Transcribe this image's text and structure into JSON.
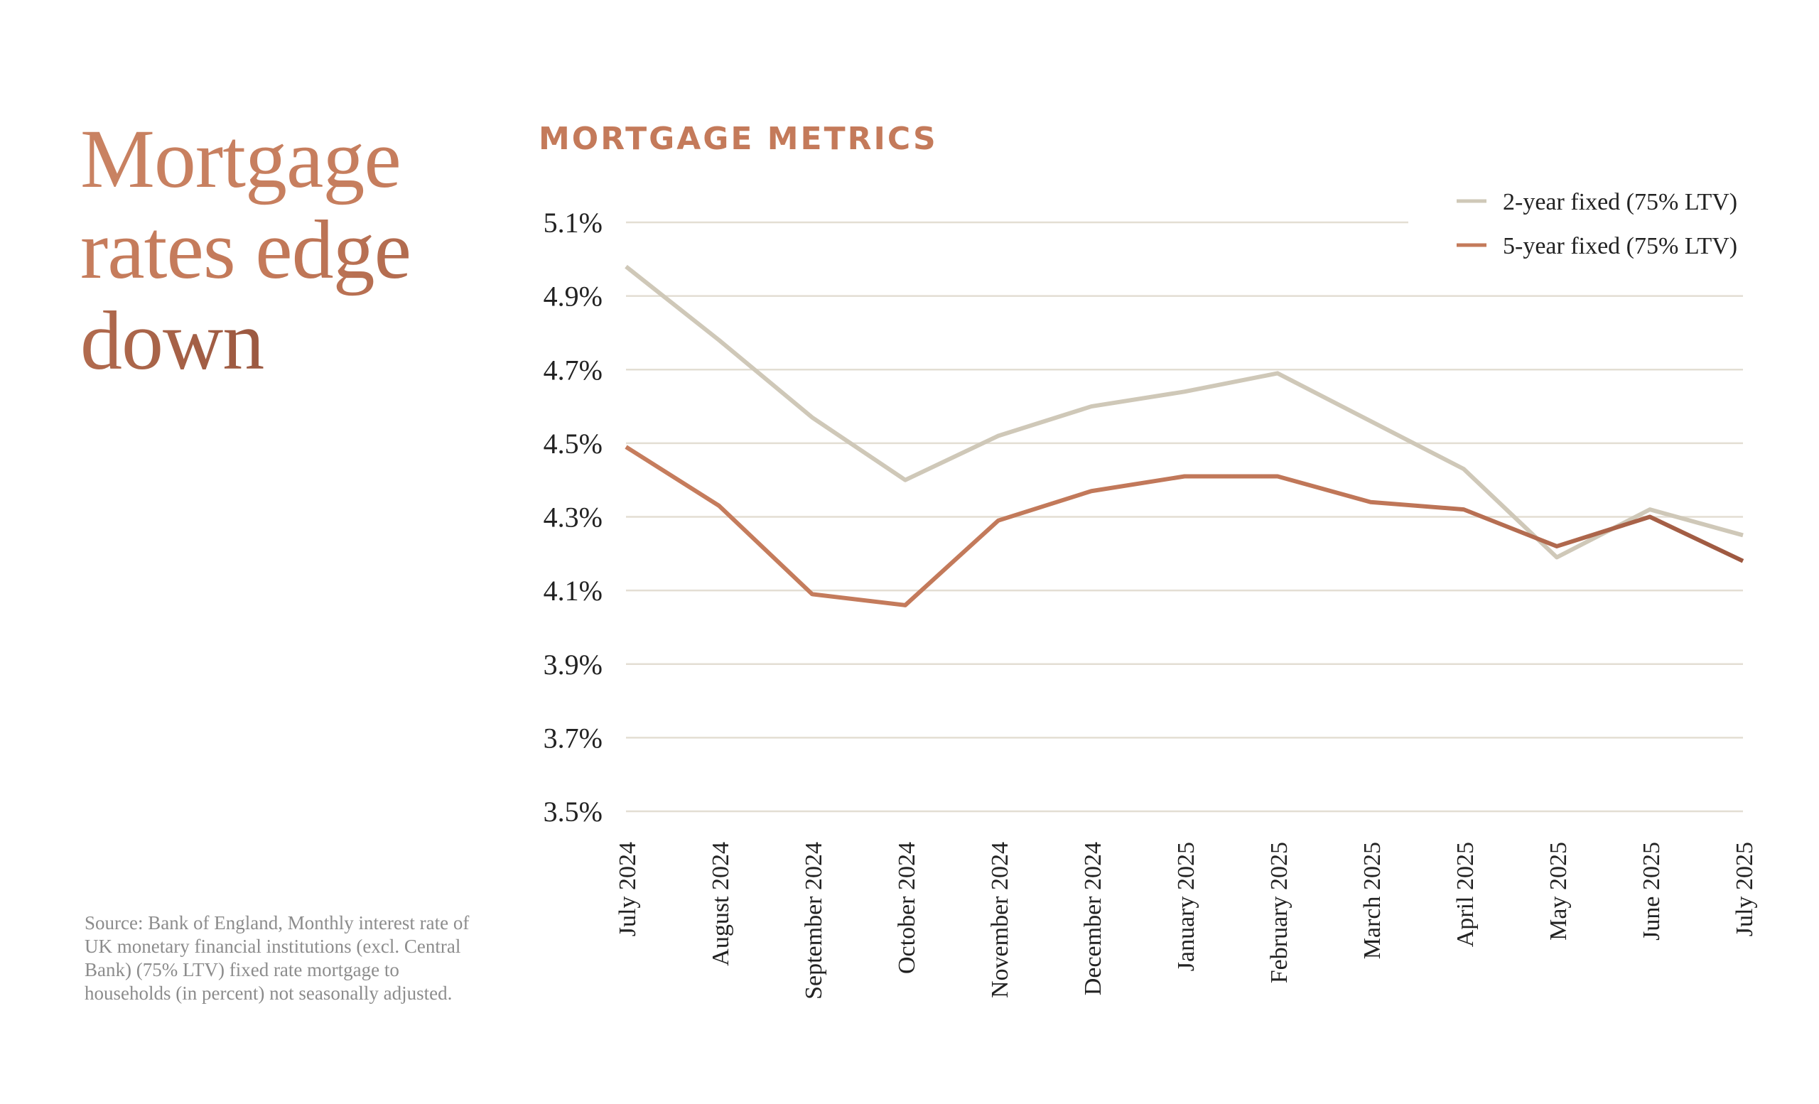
{
  "title": "Mortgage rates edge down",
  "source": "Source: Bank of England, Monthly interest rate of UK monetary financial institutions (excl. Central Bank) (75% LTV) fixed rate mortgage to households (in percent) not seasonally adjusted.",
  "chart_data": {
    "type": "line",
    "title": "MORTGAGE METRICS",
    "xlabel": "",
    "ylabel": "",
    "categories": [
      "July 2024",
      "August 2024",
      "September 2024",
      "October 2024",
      "November 2024",
      "December 2024",
      "January 2025",
      "February 2025",
      "March 2025",
      "April 2025",
      "May 2025",
      "June 2025",
      "July 2025"
    ],
    "y_ticks": [
      "3.5%",
      "3.7%",
      "3.9%",
      "4.1%",
      "4.3%",
      "4.5%",
      "4.7%",
      "4.9%",
      "5.1%"
    ],
    "ylim": [
      3.5,
      5.1
    ],
    "grid": true,
    "legend_position": "top-right",
    "series": [
      {
        "name": "2-year fixed (75% LTV)",
        "color": "#cfc8b8",
        "values": [
          4.98,
          4.78,
          4.57,
          4.4,
          4.52,
          4.6,
          4.64,
          4.69,
          4.56,
          4.43,
          4.19,
          4.32,
          4.25
        ]
      },
      {
        "name": "5-year fixed (75% LTV)",
        "color": "#c47a5a",
        "values": [
          4.49,
          4.33,
          4.09,
          4.06,
          4.29,
          4.37,
          4.41,
          4.41,
          4.34,
          4.32,
          4.22,
          4.3,
          4.18
        ]
      }
    ]
  }
}
